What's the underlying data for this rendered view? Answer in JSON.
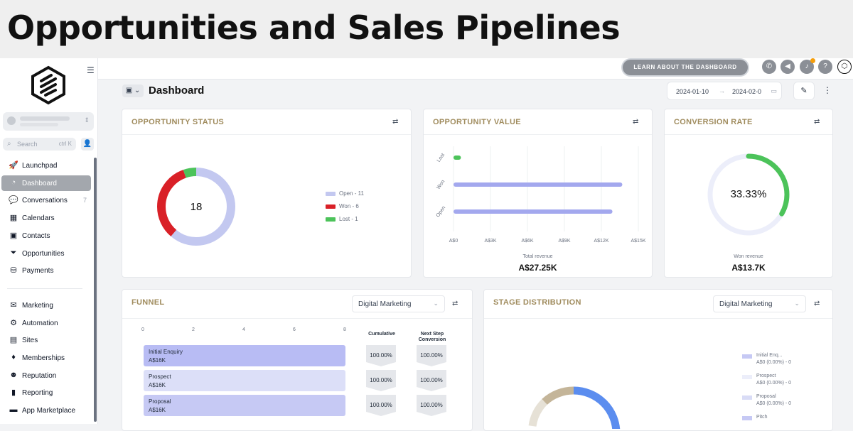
{
  "banner": {
    "title": "Opportunities and Sales Pipelines"
  },
  "sidebar": {
    "search_placeholder": "Search",
    "search_shortcut": "ctrl K",
    "items": [
      {
        "label": "Launchpad",
        "icon": "rocket-icon",
        "glyph": "🚀"
      },
      {
        "label": "Dashboard",
        "icon": "dashboard-icon",
        "glyph": "◔",
        "active": true
      },
      {
        "label": "Conversations",
        "icon": "chat-icon",
        "glyph": "💬",
        "count": "7"
      },
      {
        "label": "Calendars",
        "icon": "calendar-icon",
        "glyph": "▦"
      },
      {
        "label": "Contacts",
        "icon": "contacts-icon",
        "glyph": "▣"
      },
      {
        "label": "Opportunities",
        "icon": "filter-icon",
        "glyph": "⏷"
      },
      {
        "label": "Payments",
        "icon": "payments-icon",
        "glyph": "⛁"
      },
      {
        "label": "Marketing",
        "icon": "send-icon",
        "glyph": "✉"
      },
      {
        "label": "Automation",
        "icon": "automation-icon",
        "glyph": "⚙"
      },
      {
        "label": "Sites",
        "icon": "sites-icon",
        "glyph": "▤"
      },
      {
        "label": "Memberships",
        "icon": "membership-icon",
        "glyph": "♦"
      },
      {
        "label": "Reputation",
        "icon": "reputation-icon",
        "glyph": "☻"
      },
      {
        "label": "Reporting",
        "icon": "reporting-icon",
        "glyph": "▮"
      },
      {
        "label": "App Marketplace",
        "icon": "marketplace-icon",
        "glyph": "▬"
      }
    ]
  },
  "topbar": {
    "learn_label": "LEARN ABOUT THE DASHBOARD"
  },
  "header": {
    "title": "Dashboard",
    "date_start": "2024-01-10",
    "date_end": "2024-02-0",
    "arrow": "→"
  },
  "opportunity_status": {
    "title": "OPPORTUNITY STATUS",
    "total": "18",
    "legend": [
      {
        "label": "Open - 11",
        "color": "#c3c8f0"
      },
      {
        "label": "Won - 6",
        "color": "#d92027"
      },
      {
        "label": "Lost - 1",
        "color": "#4cc35a"
      }
    ]
  },
  "opportunity_value": {
    "title": "OPPORTUNITY VALUE",
    "caption": "Total revenue",
    "value": "A$27.25K",
    "chart_data": {
      "type": "bar",
      "orientation": "horizontal",
      "categories": [
        "Lost",
        "Won",
        "Open"
      ],
      "values": [
        0.6,
        13.7,
        12.9
      ],
      "colors": [
        "#4cc35a",
        "#a3a8ee",
        "#a3a8ee"
      ],
      "xticks": [
        "A$0",
        "A$3K",
        "A$6K",
        "A$9K",
        "A$12K",
        "A$15K"
      ],
      "xlim": [
        0,
        15
      ]
    }
  },
  "conversion_rate": {
    "title": "CONVERSION RATE",
    "rate_label": "33.33%",
    "fraction": 0.3333,
    "caption": "Won revenue",
    "value": "A$13.7K"
  },
  "funnel": {
    "title": "FUNNEL",
    "select_value": "Digital Marketing",
    "axis_ticks": [
      "0",
      "2",
      "4",
      "6",
      "8"
    ],
    "col_cumulative": "Cumulative",
    "col_next_1": "Next Step",
    "col_next_2": "Conversion",
    "stages": [
      {
        "name": "Initial Enquiry",
        "value": "A$16K",
        "cumulative": "100.00%",
        "next": "100.00%",
        "color": "#b8bcf4"
      },
      {
        "name": "Prospect",
        "value": "A$16K",
        "cumulative": "100.00%",
        "next": "100.00%",
        "color": "#dcdff8"
      },
      {
        "name": "Proposal",
        "value": "A$16K",
        "cumulative": "100.00%",
        "next": "100.00%",
        "color": "#c6c9f4"
      }
    ]
  },
  "stage_distribution": {
    "title": "STAGE DISTRIBUTION",
    "select_value": "Digital Marketing",
    "legend": [
      {
        "l1": "Initial Enq...",
        "l2": "A$0 (0.00%) - 0",
        "color": "#c6c9f4"
      },
      {
        "l1": "Prospect",
        "l2": "A$0 (0.00%) - 0",
        "color": "#eceefa"
      },
      {
        "l1": "Proposal",
        "l2": "A$0 (0.00%) - 0",
        "color": "#d9dcf6"
      },
      {
        "l1": "Pitch",
        "l2": "",
        "color": "#c6c9f4"
      }
    ]
  }
}
